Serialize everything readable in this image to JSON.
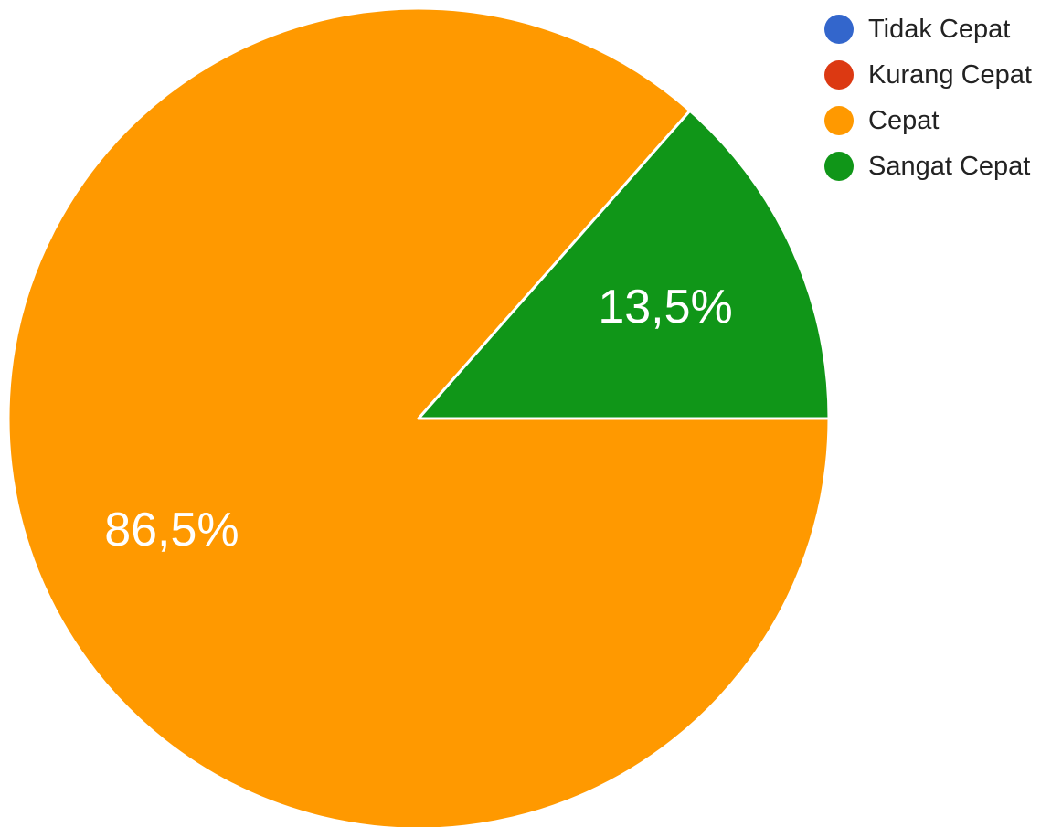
{
  "chart_data": {
    "type": "pie",
    "legend_position": "top-right",
    "categories": [
      "Tidak Cepat",
      "Kurang Cepat",
      "Cepat",
      "Sangat Cepat"
    ],
    "values": [
      0,
      0,
      86.5,
      13.5
    ],
    "value_labels": [
      "",
      "",
      "86,5%",
      "13,5%"
    ],
    "colors": [
      "#3366cc",
      "#dc3912",
      "#ff9900",
      "#109618"
    ],
    "slice_border_color": "#ffffff"
  }
}
